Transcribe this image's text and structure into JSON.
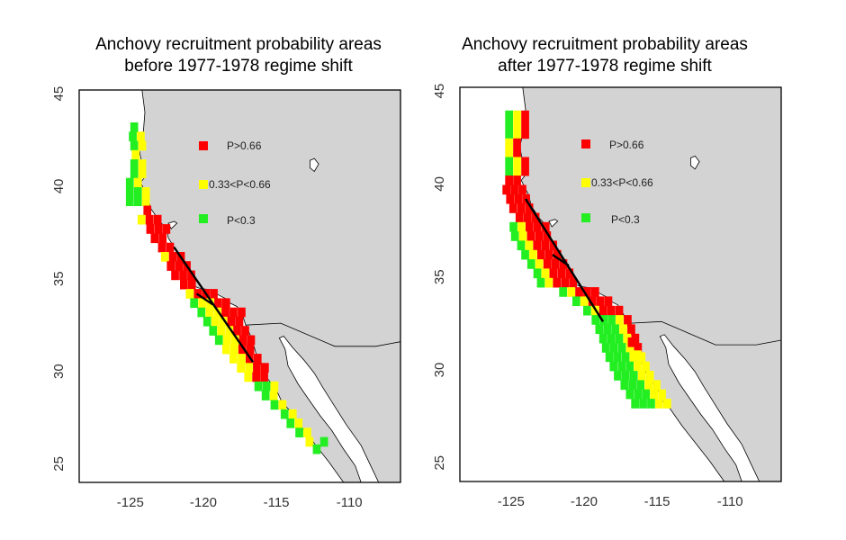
{
  "colors": {
    "high": "#ff0000",
    "mid": "#ffff00",
    "low": "#22ee22",
    "land": "#d3d3d3",
    "sea": "#ffffff",
    "frame": "#000000"
  },
  "panels": [
    {
      "id": "before",
      "title_line1": "Anchovy recruitment probability areas",
      "title_line2": "before 1977-1978 regime shift",
      "legend": [
        {
          "label": "P>0.66",
          "color_key": "high"
        },
        {
          "label": "0.33<P<0.66",
          "color_key": "mid"
        },
        {
          "label": "P<0.3",
          "color_key": "low"
        }
      ],
      "x_ticks": [
        -125,
        -120,
        -115,
        -110
      ],
      "y_ticks": [
        25,
        30,
        35,
        40,
        45
      ],
      "x_range": [
        -128.5,
        -106.5
      ],
      "y_range": [
        24,
        45.2
      ],
      "transect": {
        "from": [
          -122.0,
          36.7
        ],
        "to": [
          -116.6,
          30.5
        ]
      },
      "cross": [
        -119.9,
        33.9
      ]
    },
    {
      "id": "after",
      "title_line1": "Anchovy recruitment probability areas",
      "title_line2": "after 1977-1978 regime shift",
      "legend": [
        {
          "label": "P>0.66",
          "color_key": "high"
        },
        {
          "label": "0.33<P<0.66",
          "color_key": "mid"
        },
        {
          "label": "P<0.3",
          "color_key": "low"
        }
      ],
      "x_ticks": [
        -125,
        -120,
        -115,
        -110
      ],
      "y_ticks": [
        25,
        30,
        35,
        40,
        45
      ],
      "x_range": [
        -128.5,
        -106.5
      ],
      "y_range": [
        24,
        45.2
      ],
      "transect": {
        "from": [
          -124.0,
          39.2
        ],
        "to": [
          -118.7,
          32.6
        ]
      },
      "cross": [
        -121.6,
        35.9
      ]
    }
  ]
}
